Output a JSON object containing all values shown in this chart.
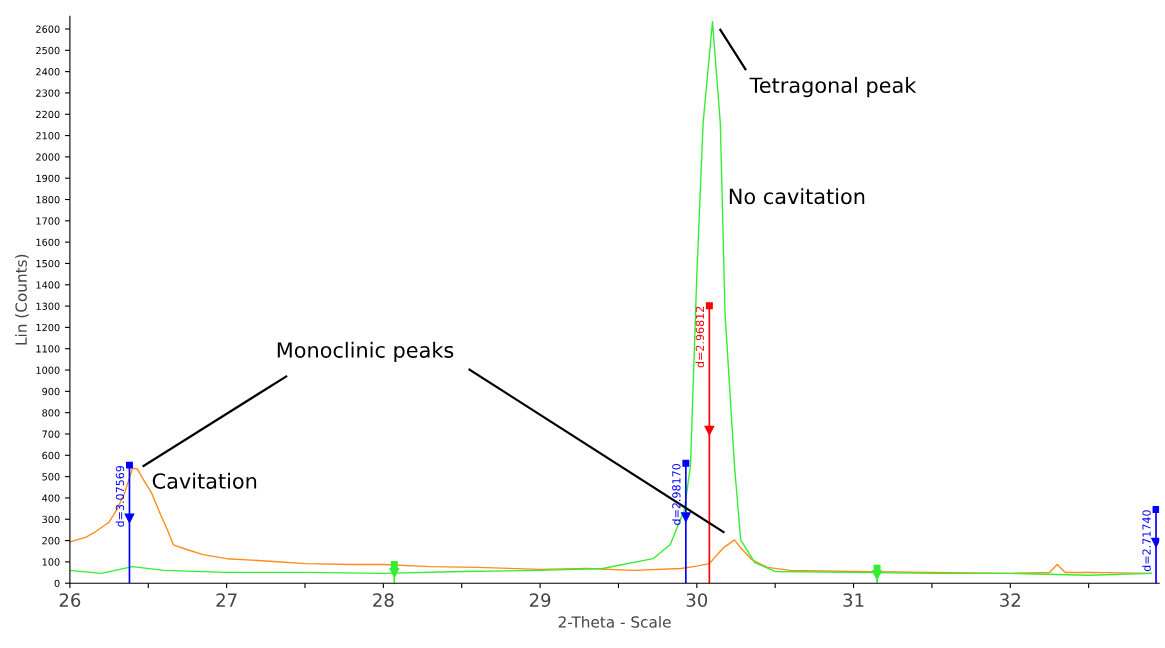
{
  "chart_data": {
    "type": "line",
    "xlabel": "2-Theta - Scale",
    "ylabel": "Lin (Counts)",
    "xlim": [
      26,
      32.95
    ],
    "ylim": [
      0,
      2660
    ],
    "xticks": [
      26,
      {
        "value": 26.5,
        "label": null
      },
      27,
      {
        "value": 27.5,
        "label": null
      },
      28,
      {
        "value": 28.5,
        "label": null
      },
      29,
      {
        "value": 29.5,
        "label": null
      },
      30,
      {
        "value": 30.5,
        "label": null
      },
      31,
      {
        "value": 31.5,
        "label": null
      },
      32,
      {
        "value": 32.5,
        "label": null
      }
    ],
    "yticks": [
      0,
      100,
      200,
      300,
      400,
      500,
      600,
      700,
      800,
      900,
      1000,
      1100,
      1200,
      1300,
      1400,
      1500,
      1600,
      1700,
      1800,
      1900,
      2000,
      2100,
      2200,
      2300,
      2400,
      2500,
      2600
    ],
    "grid": false,
    "legend": false,
    "series": [
      {
        "color": "#ff8c1a",
        "x": [
          26.0,
          26.1,
          26.16,
          26.25,
          26.3,
          26.35,
          26.4,
          26.43,
          26.47,
          26.52,
          26.58,
          26.62,
          26.66,
          26.75,
          26.85,
          27.0,
          27.3,
          27.5,
          27.8,
          28.0,
          28.3,
          28.6,
          29.0,
          29.3,
          29.6,
          29.9,
          30.0,
          30.08,
          30.17,
          30.24,
          30.28,
          30.35,
          30.45,
          30.6,
          31.0,
          31.5,
          32.0,
          32.25,
          32.3,
          32.35,
          32.5,
          32.9
        ],
        "values": [
          194,
          215,
          240,
          286,
          346,
          425,
          540,
          536,
          485,
          425,
          319,
          254,
          180,
          157,
          134,
          115,
          102,
          92,
          88,
          88,
          78,
          74,
          65,
          69,
          60,
          69,
          80,
          92,
          166,
          203,
          166,
          111,
          74,
          60,
          55,
          51,
          46,
          50,
          88,
          50,
          51,
          46
        ]
      },
      {
        "color": "#33ee33",
        "x": [
          26.0,
          26.2,
          26.4,
          26.6,
          27.0,
          27.5,
          28.0,
          28.5,
          29.0,
          29.4,
          29.72,
          29.83,
          29.92,
          29.96,
          30.0,
          30.04,
          30.1,
          30.15,
          30.18,
          30.24,
          30.28,
          30.37,
          30.5,
          31.0,
          31.5,
          32.0,
          32.5,
          32.9
        ],
        "values": [
          60,
          46,
          78,
          60,
          51,
          51,
          46,
          55,
          60,
          69,
          115,
          180,
          342,
          554,
          1446,
          2157,
          2635,
          2157,
          1266,
          554,
          203,
          97,
          55,
          51,
          46,
          46,
          37,
          46
        ]
      },
      {
        "type": "lollipop",
        "color": "#0000ff",
        "x": [
          26.38,
          29.93,
          32.93
        ],
        "values": [
          554,
          563,
          346
        ]
      },
      {
        "type": "lollipop",
        "color": "#ff0000",
        "x": [
          30.08
        ],
        "values": [
          1302
        ]
      },
      {
        "type": "lollipop",
        "color": "#33ee33",
        "x": [
          28.07,
          31.15
        ],
        "values": [
          88,
          70
        ]
      },
      {
        "color": "#000000",
        "x": [
          30.15,
          30.31
        ],
        "values": [
          2596,
          2411
        ]
      },
      {
        "color": "#000000",
        "x": [
          26.47,
          27.38
        ],
        "values": [
          550,
          970
        ]
      },
      {
        "color": "#000000",
        "x": [
          28.55,
          30.17
        ],
        "values": [
          1002,
          240
        ]
      }
    ],
    "annotations": [
      "Tetragonal peak",
      "No cavitation",
      "Monoclinic peaks",
      "Cavitation",
      {
        "text": "d=3.07569",
        "x": 26.38,
        "y": 554
      },
      {
        "text": "d=2.98170",
        "x": 29.93,
        "y": 563
      },
      {
        "text": "d=2.96812",
        "x": 30.08,
        "y": 1302
      },
      {
        "text": "d=2.71740",
        "x": 32.93,
        "y": 346
      }
    ]
  }
}
